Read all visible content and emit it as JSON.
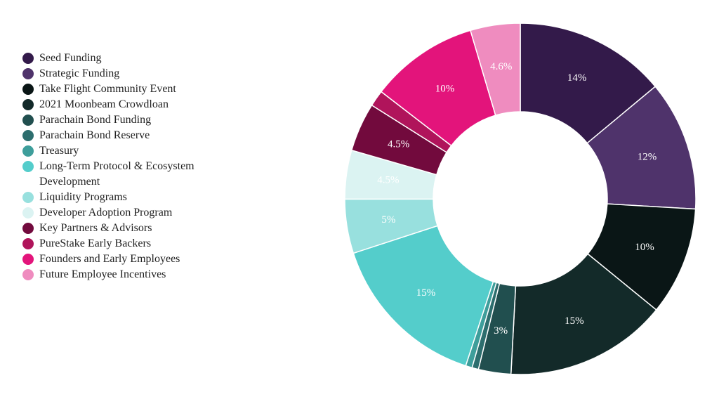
{
  "colors": {
    "background": "#ffffff",
    "slice_border": "#ffffff",
    "legend_text": "#222222"
  },
  "chart_data": {
    "type": "pie",
    "variant": "donut",
    "title": "",
    "legend_position": "left",
    "start_angle_deg": 0,
    "direction": "clockwise",
    "series": [
      {
        "name": "Seed Funding",
        "value": 14,
        "label": "14%",
        "color": "#331a4a",
        "label_color": "#ffffff"
      },
      {
        "name": "Strategic Funding",
        "value": 12,
        "label": "12%",
        "color": "#4f336b",
        "label_color": "#ffffff"
      },
      {
        "name": "Take Flight Community Event",
        "value": 10,
        "label": "10%",
        "color": "#0a1616",
        "label_color": "#ffffff"
      },
      {
        "name": "2021 Moonbeam Crowdloan",
        "value": 15,
        "label": "15%",
        "color": "#132a29",
        "label_color": "#ffffff"
      },
      {
        "name": "Parachain Bond Funding",
        "value": 3,
        "label": "3%",
        "color": "#214f4f",
        "label_color": "#ffffff"
      },
      {
        "name": "Parachain Bond Reserve",
        "value": 0.6,
        "label": "",
        "color": "#2d6e6e",
        "label_color": "#ffffff"
      },
      {
        "name": "Treasury",
        "value": 0.6,
        "label": "",
        "color": "#3e9e9b",
        "label_color": "#ffffff"
      },
      {
        "name": "Long-Term Protocol & Ecosystem Development",
        "value": 15,
        "label": "15%",
        "color": "#54cdcb",
        "label_color": "#ffffff"
      },
      {
        "name": "Liquidity Programs",
        "value": 5,
        "label": "5%",
        "color": "#98e0de",
        "label_color": "#ffffff"
      },
      {
        "name": "Developer Adoption Program",
        "value": 4.5,
        "label": "4.5%",
        "color": "#dbf3f2",
        "label_color": "#ffffff"
      },
      {
        "name": "Key Partners & Advisors",
        "value": 4.5,
        "label": "4.5%",
        "color": "#720a3d",
        "label_color": "#ffffff"
      },
      {
        "name": "PureStake Early Backers",
        "value": 1.5,
        "label": "",
        "color": "#b0145b",
        "label_color": "#ffffff"
      },
      {
        "name": "Founders and Early Employees",
        "value": 10,
        "label": "10%",
        "color": "#e3147b",
        "label_color": "#ffffff"
      },
      {
        "name": "Future Employee Incentives",
        "value": 4.6,
        "label": "4.6%",
        "color": "#ef8cbf",
        "label_color": "#ffffff"
      }
    ]
  }
}
